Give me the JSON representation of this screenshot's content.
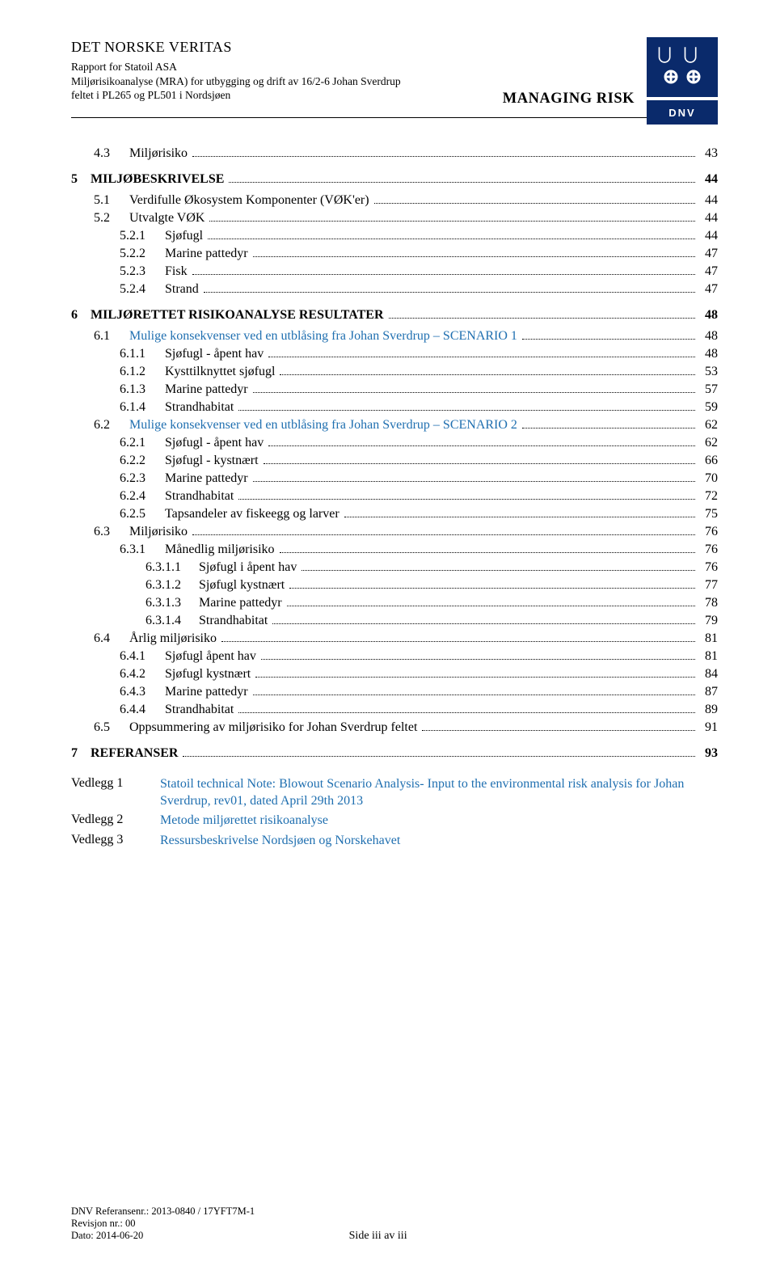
{
  "header": {
    "org": "DET NORSKE VERITAS",
    "report_for": "Rapport for Statoil ASA",
    "subtitle_l1": "Miljørisikoanalyse (MRA) for utbygging og drift av 16/2-6 Johan Sverdrup",
    "subtitle_l2": "feltet i PL265 og PL501 i Nordsjøen",
    "managing": "MANAGING RISK",
    "logo_text": "DNV"
  },
  "toc": [
    {
      "lvl": 2,
      "num": "4.3",
      "label": "Miljørisiko",
      "page": "43"
    },
    {
      "lvl": 1,
      "num": "5",
      "label": "MILJØBESKRIVELSE",
      "page": "44",
      "gap": "md"
    },
    {
      "lvl": 2,
      "num": "5.1",
      "label": "Verdifulle Økosystem Komponenter (VØK'er)",
      "page": "44",
      "gap": "sm"
    },
    {
      "lvl": 2,
      "num": "5.2",
      "label": "Utvalgte VØK",
      "page": "44"
    },
    {
      "lvl": 3,
      "num": "5.2.1",
      "label": "Sjøfugl",
      "page": "44"
    },
    {
      "lvl": 3,
      "num": "5.2.2",
      "label": "Marine pattedyr",
      "page": "47"
    },
    {
      "lvl": 3,
      "num": "5.2.3",
      "label": "Fisk",
      "page": "47"
    },
    {
      "lvl": 3,
      "num": "5.2.4",
      "label": "Strand",
      "page": "47"
    },
    {
      "lvl": 1,
      "num": "6",
      "label": "MILJØRETTET RISIKOANALYSE RESULTATER",
      "page": "48",
      "gap": "md"
    },
    {
      "lvl": 2,
      "num": "6.1",
      "label": "Mulige konsekvenser ved en utblåsing fra Johan Sverdrup – SCENARIO 1",
      "page": "48",
      "blue": true,
      "gap": "sm"
    },
    {
      "lvl": 3,
      "num": "6.1.1",
      "label": "Sjøfugl - åpent hav",
      "page": "48"
    },
    {
      "lvl": 3,
      "num": "6.1.2",
      "label": "Kysttilknyttet sjøfugl",
      "page": "53"
    },
    {
      "lvl": 3,
      "num": "6.1.3",
      "label": "Marine pattedyr",
      "page": "57"
    },
    {
      "lvl": 3,
      "num": "6.1.4",
      "label": "Strandhabitat",
      "page": "59"
    },
    {
      "lvl": 2,
      "num": "6.2",
      "label": "Mulige konsekvenser ved en utblåsing fra Johan Sverdrup – SCENARIO 2",
      "page": "62",
      "blue": true
    },
    {
      "lvl": 3,
      "num": "6.2.1",
      "label": "Sjøfugl - åpent hav",
      "page": "62"
    },
    {
      "lvl": 3,
      "num": "6.2.2",
      "label": "Sjøfugl - kystnært",
      "page": "66"
    },
    {
      "lvl": 3,
      "num": "6.2.3",
      "label": "Marine pattedyr",
      "page": "70"
    },
    {
      "lvl": 3,
      "num": "6.2.4",
      "label": "Strandhabitat",
      "page": "72"
    },
    {
      "lvl": 3,
      "num": "6.2.5",
      "label": "Tapsandeler av fiskeegg og larver",
      "page": "75"
    },
    {
      "lvl": 2,
      "num": "6.3",
      "label": "Miljørisiko",
      "page": "76"
    },
    {
      "lvl": 3,
      "num": "6.3.1",
      "label": "Månedlig miljørisiko",
      "page": "76"
    },
    {
      "lvl": 4,
      "num": "6.3.1.1",
      "label": "Sjøfugl i åpent hav",
      "page": "76"
    },
    {
      "lvl": 4,
      "num": "6.3.1.2",
      "label": "Sjøfugl kystnært",
      "page": "77"
    },
    {
      "lvl": 4,
      "num": "6.3.1.3",
      "label": "Marine pattedyr",
      "page": "78"
    },
    {
      "lvl": 4,
      "num": "6.3.1.4",
      "label": "Strandhabitat",
      "page": "79"
    },
    {
      "lvl": 2,
      "num": "6.4",
      "label": "Årlig miljørisiko",
      "page": "81"
    },
    {
      "lvl": 3,
      "num": "6.4.1",
      "label": "Sjøfugl åpent hav",
      "page": "81"
    },
    {
      "lvl": 3,
      "num": "6.4.2",
      "label": "Sjøfugl kystnært",
      "page": "84"
    },
    {
      "lvl": 3,
      "num": "6.4.3",
      "label": "Marine pattedyr",
      "page": "87"
    },
    {
      "lvl": 3,
      "num": "6.4.4",
      "label": "Strandhabitat",
      "page": "89"
    },
    {
      "lvl": 2,
      "num": "6.5",
      "label": "Oppsummering av miljørisiko for Johan Sverdrup feltet",
      "page": "91"
    },
    {
      "lvl": 1,
      "num": "7",
      "label": "REFERANSER",
      "page": "93",
      "gap": "md"
    }
  ],
  "vedlegg": [
    {
      "label": "Vedlegg 1",
      "text": "Statoil technical Note: Blowout Scenario Analysis- Input to the environmental risk analysis for Johan Sverdrup, rev01, dated April 29th 2013"
    },
    {
      "label": "Vedlegg 2",
      "text": "Metode miljørettet risikoanalyse"
    },
    {
      "label": "Vedlegg 3",
      "text": "Ressursbeskrivelse Nordsjøen og Norskehavet"
    }
  ],
  "footer": {
    "ref": "DNV Referansenr.: 2013-0840 / 17YFT7M-1",
    "rev": "Revisjon nr.: 00",
    "date": "Dato: 2014-06-20",
    "page": "Side iii av iii"
  },
  "colors": {
    "link_blue": "#1f6fb0",
    "logo_navy": "#0a2a6b"
  }
}
